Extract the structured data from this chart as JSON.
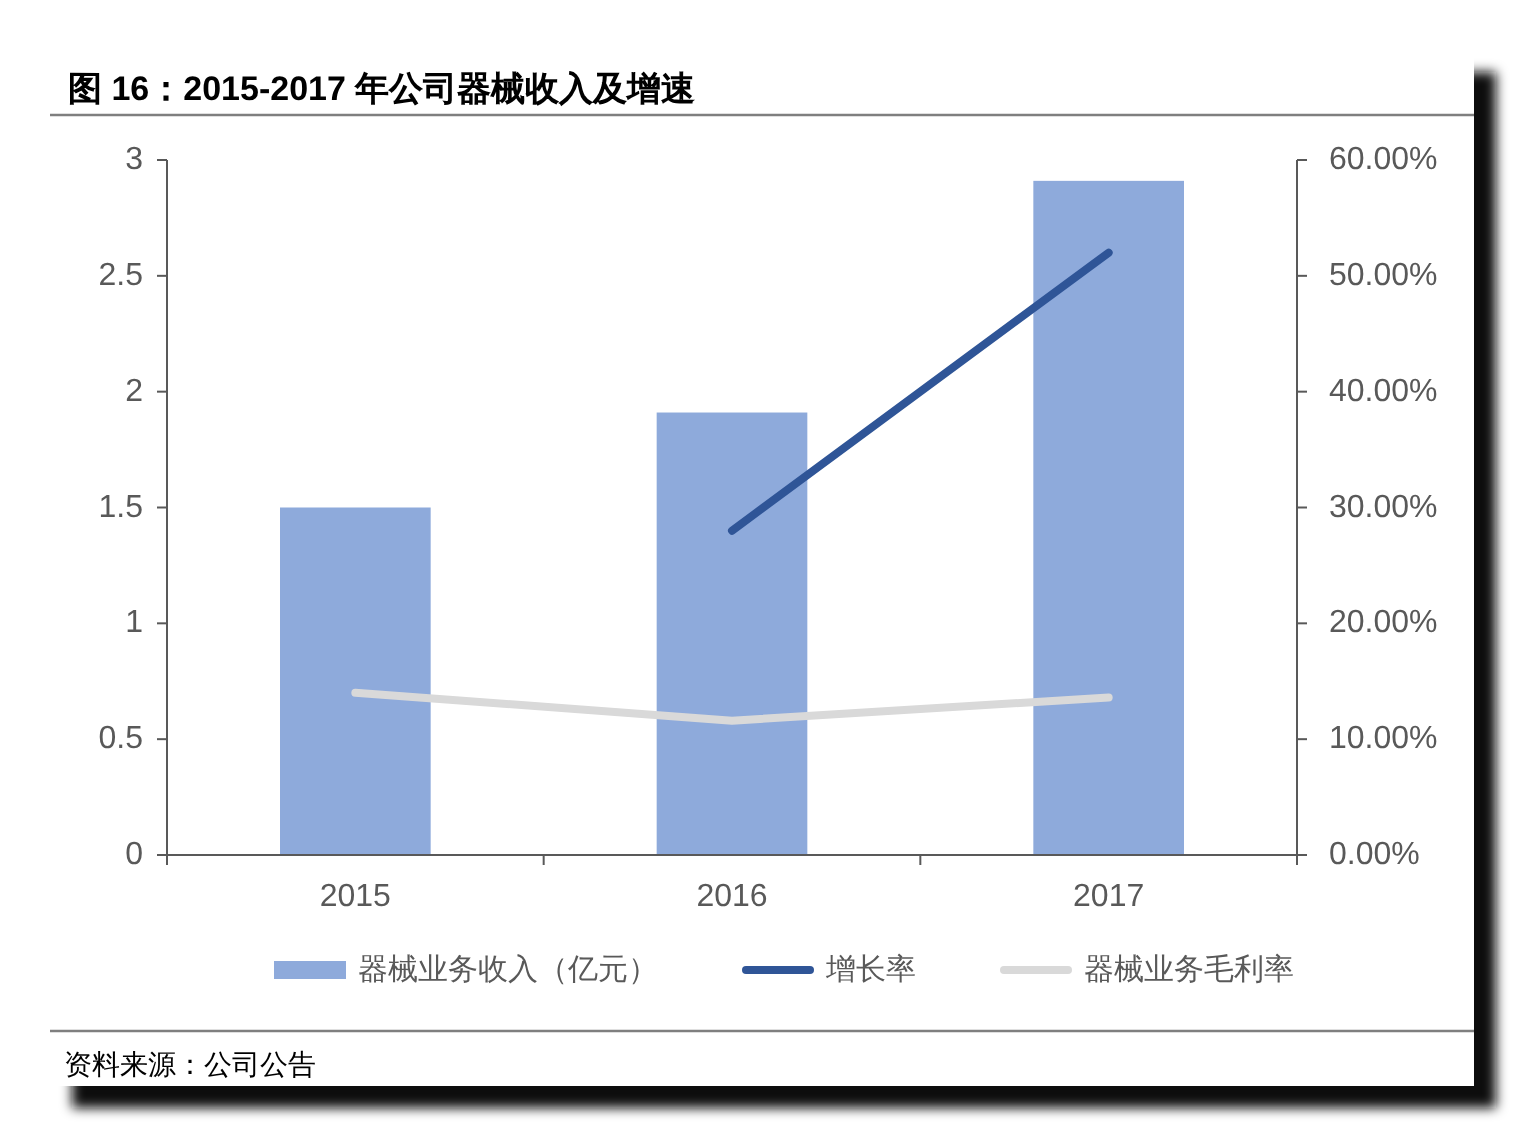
{
  "chart_data": {
    "type": "bar",
    "title": "图 16：2015-2017 年公司器械收入及增速",
    "categories": [
      "2015",
      "2016",
      "2017"
    ],
    "series": [
      {
        "name": "器械业务收入（亿元）",
        "color": "#8eaadb",
        "values": [
          1.5,
          1.91,
          2.91
        ]
      },
      {
        "name": "增长率",
        "type": "line",
        "axis": "y2",
        "color": "#2f5597",
        "values": [
          null,
          28,
          52
        ]
      },
      {
        "name": "器械业务毛利率",
        "type": "line",
        "axis": "y2",
        "color": "#d9d9d9",
        "values": [
          14,
          11.6,
          13.6
        ]
      }
    ],
    "ylim": [
      0,
      3
    ],
    "yticks": [
      0,
      0.5,
      1,
      1.5,
      2,
      2.5,
      3
    ],
    "y2lim": [
      0,
      60
    ],
    "y2ticks": [
      {
        "value": 0,
        "label": "0.00%"
      },
      {
        "value": 10,
        "label": "10.00%"
      },
      {
        "value": 20,
        "label": "20.00%"
      },
      {
        "value": 30,
        "label": "30.00%"
      },
      {
        "value": 40,
        "label": "40.00%"
      },
      {
        "value": 50,
        "label": "50.00%"
      },
      {
        "value": 60,
        "label": "60.00%"
      }
    ],
    "legend": "bottom",
    "grid": false,
    "annotations": [
      "资料来源：公司公告"
    ]
  }
}
